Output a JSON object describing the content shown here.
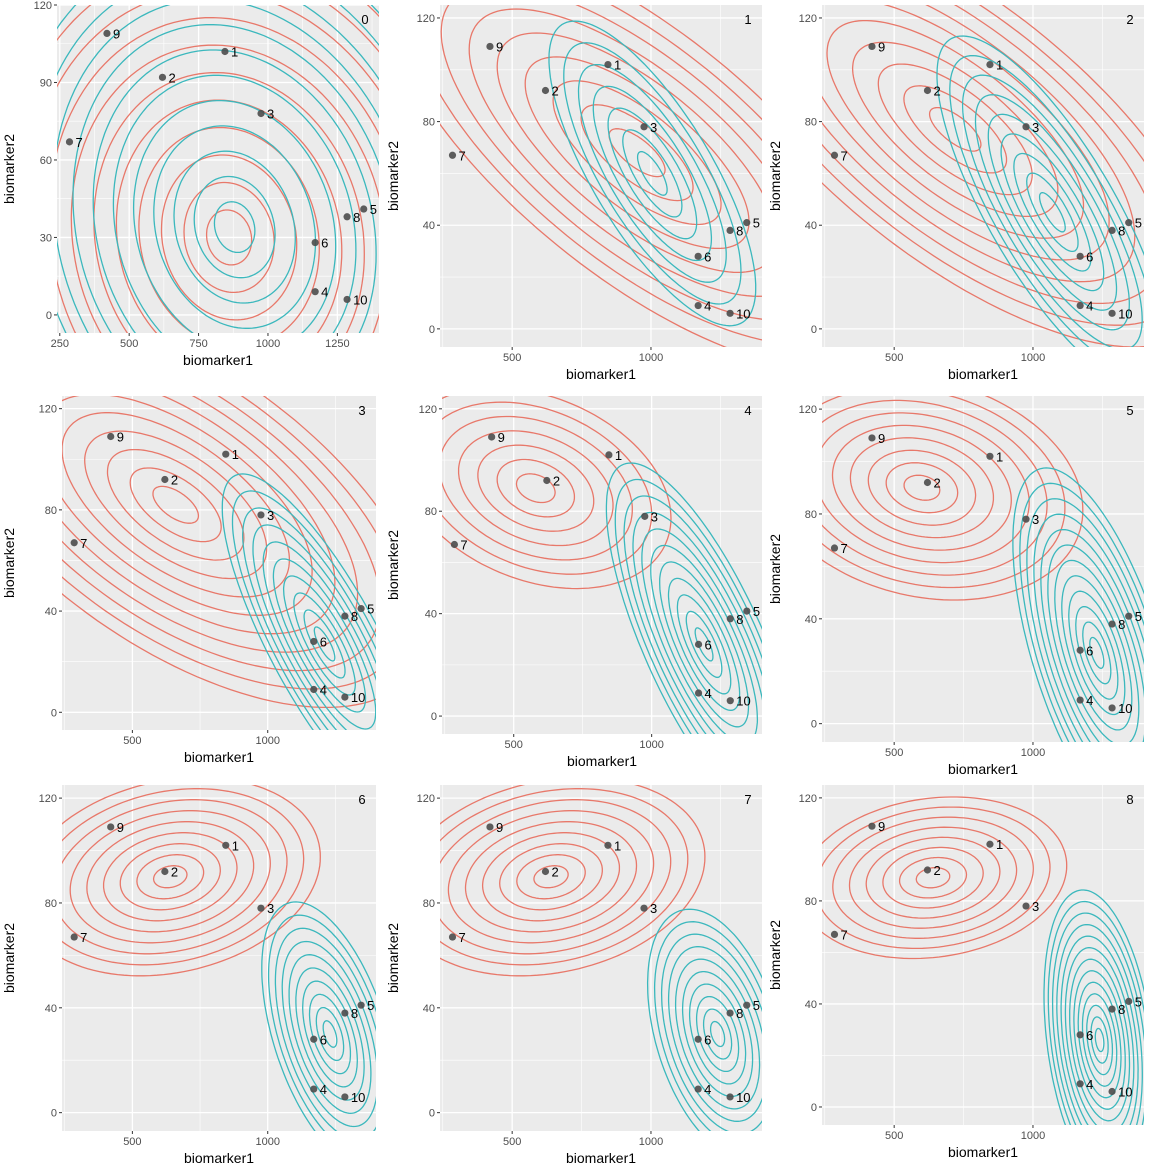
{
  "colors": {
    "panel_bg": "#ebebeb",
    "grid": "#ffffff",
    "cluster_a": "#e8786a",
    "cluster_b": "#3bb8bd",
    "point": "#4d4d4d",
    "text": "#000000",
    "tick_text": "#4d4d4d"
  },
  "points": [
    {
      "label": "1",
      "x": 845,
      "y": 102
    },
    {
      "label": "2",
      "x": 620,
      "y": 92
    },
    {
      "label": "3",
      "x": 975,
      "y": 78
    },
    {
      "label": "4",
      "x": 1170,
      "y": 9
    },
    {
      "label": "5",
      "x": 1345,
      "y": 41
    },
    {
      "label": "6",
      "x": 1170,
      "y": 28
    },
    {
      "label": "7",
      "x": 285,
      "y": 67
    },
    {
      "label": "8",
      "x": 1285,
      "y": 38
    },
    {
      "label": "9",
      "x": 420,
      "y": 109
    },
    {
      "label": "10",
      "x": 1285,
      "y": 6
    }
  ],
  "chart_data": [
    {
      "type": "scatter",
      "panel_label": "0",
      "xlabel": "biomarker1",
      "ylabel": "biomarker2",
      "xlim": [
        240,
        1400
      ],
      "ylim": [
        -7,
        120
      ],
      "x_ticks": [
        250,
        500,
        750,
        1000,
        1250
      ],
      "y_ticks": [
        0,
        30,
        60,
        90,
        120
      ],
      "components": [
        {
          "cx": 860,
          "cy": 30,
          "sx": 290,
          "sy": 38,
          "rho": -0.1,
          "levels": 12
        },
        {
          "cx": 880,
          "cy": 34,
          "sx": 260,
          "sy": 35,
          "rho": -0.15,
          "levels": 12
        }
      ]
    },
    {
      "type": "scatter",
      "panel_label": "1",
      "xlabel": "biomarker1",
      "ylabel": "biomarker2",
      "xlim": [
        240,
        1400
      ],
      "ylim": [
        -7,
        125
      ],
      "x_ticks": [
        500,
        1000
      ],
      "y_ticks": [
        0,
        40,
        80,
        120
      ],
      "components": [
        {
          "cx": 950,
          "cy": 68,
          "sx": 360,
          "sy": 33,
          "rho": -0.72,
          "levels": 9
        },
        {
          "cx": 1005,
          "cy": 60,
          "sx": 190,
          "sy": 30,
          "rho": -0.75,
          "levels": 7
        }
      ]
    },
    {
      "type": "scatter",
      "panel_label": "2",
      "xlabel": "biomarker1",
      "ylabel": "biomarker2",
      "xlim": [
        240,
        1400
      ],
      "ylim": [
        -7,
        125
      ],
      "x_ticks": [
        500,
        1000
      ],
      "y_ticks": [
        0,
        40,
        80,
        120
      ],
      "components": [
        {
          "cx": 720,
          "cy": 77,
          "sx": 330,
          "sy": 30,
          "rho": -0.7,
          "levels": 10
        },
        {
          "cx": 1070,
          "cy": 45,
          "sx": 165,
          "sy": 27,
          "rho": -0.78,
          "levels": 9
        }
      ]
    },
    {
      "type": "scatter",
      "panel_label": "3",
      "xlabel": "biomarker1",
      "ylabel": "biomarker2",
      "xlim": [
        240,
        1400
      ],
      "ylim": [
        -7,
        125
      ],
      "x_ticks": [
        500,
        1000
      ],
      "y_ticks": [
        0,
        40,
        80,
        120
      ],
      "components": [
        {
          "cx": 660,
          "cy": 82,
          "sx": 300,
          "sy": 26,
          "rho": -0.6,
          "levels": 11
        },
        {
          "cx": 1210,
          "cy": 27,
          "sx": 135,
          "sy": 24,
          "rho": -0.8,
          "levels": 10
        }
      ]
    },
    {
      "type": "scatter",
      "panel_label": "4",
      "xlabel": "biomarker1",
      "ylabel": "biomarker2",
      "xlim": [
        240,
        1400
      ],
      "ylim": [
        -7,
        125
      ],
      "x_ticks": [
        500,
        1000
      ],
      "y_ticks": [
        0,
        40,
        80,
        120
      ],
      "components": [
        {
          "cx": 580,
          "cy": 89,
          "sx": 250,
          "sy": 20,
          "rho": -0.3,
          "levels": 7
        },
        {
          "cx": 1190,
          "cy": 28,
          "sx": 115,
          "sy": 23,
          "rho": -0.75,
          "levels": 11
        }
      ]
    },
    {
      "type": "scatter",
      "panel_label": "5",
      "xlabel": "biomarker1",
      "ylabel": "biomarker2",
      "xlim": [
        240,
        1400
      ],
      "ylim": [
        -7,
        125
      ],
      "x_ticks": [
        500,
        1000
      ],
      "y_ticks": [
        0,
        40,
        80,
        120
      ],
      "components": [
        {
          "cx": 600,
          "cy": 90,
          "sx": 230,
          "sy": 17,
          "rho": -0.2,
          "levels": 9
        },
        {
          "cx": 1230,
          "cy": 27,
          "sx": 90,
          "sy": 21,
          "rho": -0.6,
          "levels": 12
        }
      ]
    },
    {
      "type": "scatter",
      "panel_label": "6",
      "xlabel": "biomarker1",
      "ylabel": "biomarker2",
      "xlim": [
        240,
        1400
      ],
      "ylim": [
        -7,
        125
      ],
      "x_ticks": [
        500,
        1000
      ],
      "y_ticks": [
        0,
        40,
        80,
        120
      ],
      "components": [
        {
          "cx": 640,
          "cy": 90,
          "sx": 220,
          "sy": 15,
          "rho": 0.2,
          "levels": 9
        },
        {
          "cx": 1230,
          "cy": 30,
          "sx": 90,
          "sy": 18,
          "rho": -0.5,
          "levels": 10
        }
      ]
    },
    {
      "type": "scatter",
      "panel_label": "7",
      "xlabel": "biomarker1",
      "ylabel": "biomarker2",
      "xlim": [
        240,
        1400
      ],
      "ylim": [
        -7,
        125
      ],
      "x_ticks": [
        500,
        1000
      ],
      "y_ticks": [
        0,
        40,
        80,
        120
      ],
      "components": [
        {
          "cx": 640,
          "cy": 90,
          "sx": 220,
          "sy": 15,
          "rho": 0.2,
          "levels": 9
        },
        {
          "cx": 1240,
          "cy": 30,
          "sx": 90,
          "sy": 17,
          "rho": -0.4,
          "levels": 10
        }
      ]
    },
    {
      "type": "scatter",
      "panel_label": "8",
      "xlabel": "biomarker1",
      "ylabel": "biomarker2",
      "xlim": [
        240,
        1400
      ],
      "ylim": [
        -7,
        125
      ],
      "x_ticks": [
        500,
        1000
      ],
      "y_ticks": [
        0,
        40,
        80,
        120
      ],
      "components": [
        {
          "cx": 640,
          "cy": 89,
          "sx": 215,
          "sy": 14,
          "rho": 0.15,
          "levels": 8
        },
        {
          "cx": 1240,
          "cy": 26,
          "sx": 55,
          "sy": 16,
          "rho": -0.3,
          "levels": 13
        }
      ]
    }
  ]
}
